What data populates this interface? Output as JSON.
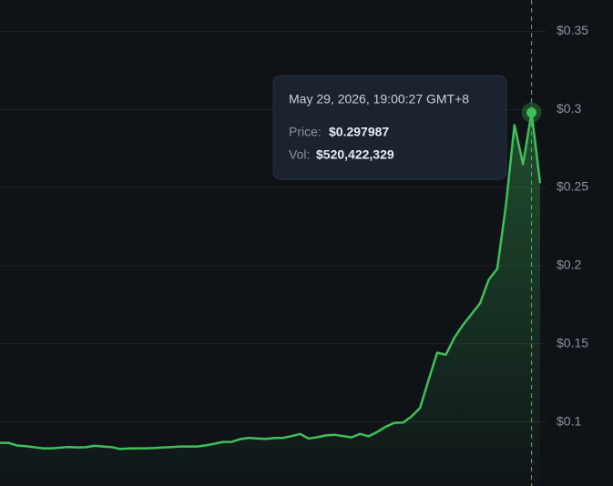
{
  "chart_data": {
    "type": "line",
    "series": [
      {
        "color": "#3fbf5a",
        "values": [
          0.0866,
          0.0866,
          0.0849,
          0.0845,
          0.0838,
          0.0831,
          0.0831,
          0.0835,
          0.084,
          0.0837,
          0.0838,
          0.0847,
          0.0843,
          0.0839,
          0.0827,
          0.083,
          0.0831,
          0.0831,
          0.0833,
          0.0837,
          0.0839,
          0.0843,
          0.0843,
          0.0843,
          0.085,
          0.086,
          0.0872,
          0.0872,
          0.089,
          0.0898,
          0.0894,
          0.0891,
          0.0897,
          0.0898,
          0.0909,
          0.0923,
          0.0894,
          0.0902,
          0.0914,
          0.0918,
          0.091,
          0.0901,
          0.0924,
          0.0908,
          0.0936,
          0.097,
          0.0994,
          0.0996,
          0.1035,
          0.109,
          0.127,
          0.1443,
          0.143,
          0.154,
          0.162,
          0.169,
          0.176,
          0.191,
          0.198,
          0.238,
          0.29,
          0.265,
          0.297987,
          0.2527
        ]
      }
    ],
    "ylim": [
      0.059,
      0.37
    ],
    "yticks": [
      {
        "value": 0.1,
        "label": "$0.1"
      },
      {
        "value": 0.15,
        "label": "$0.15"
      },
      {
        "value": 0.2,
        "label": "$0.2"
      },
      {
        "value": 0.25,
        "label": "$0.25"
      },
      {
        "value": 0.3,
        "label": "$0.3"
      },
      {
        "value": 0.35,
        "label": "$0.35"
      }
    ],
    "grid": true,
    "tooltip": {
      "date": "May 29, 2026, 19:00:27 GMT+8",
      "price_label": "Price:",
      "price": "$0.297987",
      "vol_label": "Vol:",
      "vol": "$520,422,329"
    }
  }
}
